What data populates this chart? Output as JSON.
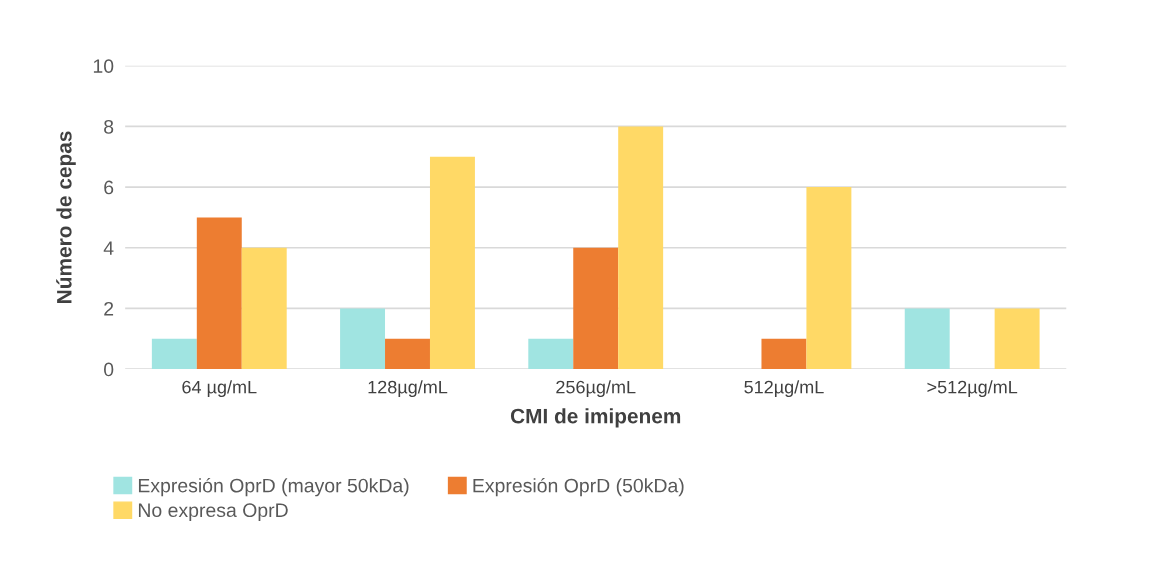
{
  "chart_data": {
    "type": "bar",
    "xlabel": "CMI de imipenem",
    "ylabel": "Número de cepas",
    "categories": [
      "64 µg/mL",
      "128µg/mL",
      "256µg/mL",
      "512µg/mL",
      ">512µg/mL"
    ],
    "series": [
      {
        "name": "Expresión OprD (mayor 50kDa)",
        "color": "#a0e4e1",
        "values": [
          1,
          2,
          1,
          0,
          2
        ]
      },
      {
        "name": "Expresión OprD (50kDa)",
        "color": "#ed7d31",
        "values": [
          5,
          1,
          4,
          1,
          0
        ]
      },
      {
        "name": "No expresa OprD",
        "color": "#ffd966",
        "values": [
          4,
          7,
          8,
          6,
          2
        ]
      }
    ],
    "ylim": [
      0,
      10
    ],
    "yticks": [
      0,
      2,
      4,
      6,
      8,
      10
    ],
    "grid": "y",
    "legend": "bottom"
  }
}
